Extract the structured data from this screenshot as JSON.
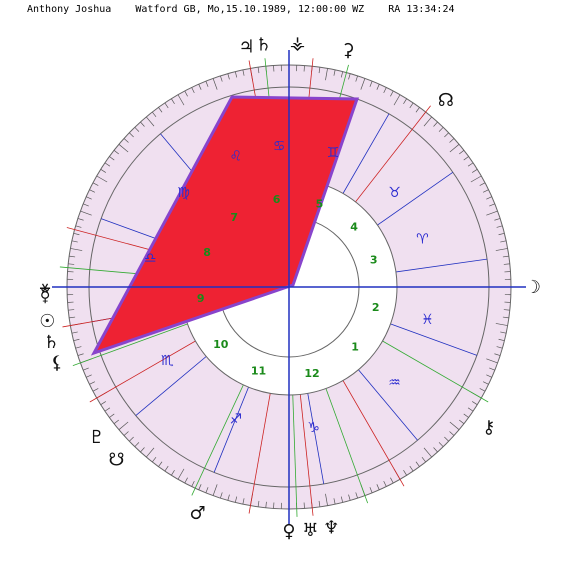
{
  "header": {
    "name": "Anthony Joshua",
    "details": "Watford GB, Mo,15.10.1989, 12:00:00 WZ",
    "ra": "RA 13:34:24"
  },
  "colors": {
    "ring_fill": "#f0e0f0",
    "ring_stroke": "#666666",
    "highlight_fill": "#ee2233",
    "highlight_stroke": "#8844cc",
    "zodiac_text": "#2b2bd0",
    "house_text": "#1a8a1a",
    "axis_line": "#2030c0",
    "planet_line_red": "#cc2222",
    "planet_line_green": "#33aa33"
  },
  "outer_planets": [
    {
      "name": "jupiter-icon",
      "glyph": "♃",
      "label_deg": 100
    },
    {
      "name": "saturn-icon-top",
      "glyph": "♄",
      "label_deg": 96
    },
    {
      "name": "vesta-icon",
      "glyph": "⚶",
      "label_deg": 88
    },
    {
      "name": "ceres-icon",
      "glyph": "⚳",
      "label_deg": 76
    },
    {
      "name": "moon-node-icon",
      "glyph": "☊",
      "label_deg": 50
    },
    {
      "name": "moon-icon",
      "glyph": "☽",
      "label_deg": 0
    },
    {
      "name": "chiron-icon",
      "glyph": "⚷",
      "label_deg": -35
    },
    {
      "name": "uranus-icon",
      "glyph": "♅",
      "label_deg": -85
    },
    {
      "name": "neptune-icon",
      "glyph": "♆",
      "label_deg": -80
    },
    {
      "name": "venus-icon",
      "glyph": "♀",
      "label_deg": -90
    },
    {
      "name": "mars-icon",
      "glyph": "♂",
      "label_deg": -112
    },
    {
      "name": "sun-node-icon",
      "glyph": "☋",
      "label_deg": -135
    },
    {
      "name": "pluto-icon",
      "glyph": "♇",
      "label_deg": -142
    },
    {
      "name": "lilith-icon",
      "glyph": "⚸",
      "label_deg": -162
    },
    {
      "name": "sun-icon",
      "glyph": "☉",
      "label_deg": -172
    },
    {
      "name": "saturn-icon",
      "glyph": "♄",
      "label_deg": -167
    },
    {
      "name": "mercury-icon",
      "glyph": "☿",
      "label_deg": -178
    },
    {
      "name": "mc-node-icon",
      "glyph": "⚹",
      "label_deg": 180
    }
  ],
  "zodiac_signs": [
    {
      "name": "sign-gemini",
      "glyph": "♊",
      "deg": 72
    },
    {
      "name": "sign-taurus",
      "glyph": "♉",
      "deg": 42
    },
    {
      "name": "sign-aries",
      "glyph": "♈",
      "deg": 20
    },
    {
      "name": "sign-pisces",
      "glyph": "♓",
      "deg": -13
    },
    {
      "name": "sign-aquarius",
      "glyph": "♒",
      "deg": -42
    },
    {
      "name": "sign-capricorn",
      "glyph": "♑",
      "deg": -80
    },
    {
      "name": "sign-sagittarius",
      "glyph": "♐",
      "deg": -112
    },
    {
      "name": "sign-scorpio",
      "glyph": "♏",
      "deg": -149
    },
    {
      "name": "sign-libra",
      "glyph": "♎",
      "deg": -192
    },
    {
      "name": "sign-virgo",
      "glyph": "♍",
      "deg": -222
    },
    {
      "name": "sign-leo",
      "glyph": "♌",
      "deg": -248
    },
    {
      "name": "sign-cancer",
      "glyph": "♋",
      "deg": -266
    }
  ],
  "house_numbers": [
    {
      "label": "4",
      "deg": 43
    },
    {
      "label": "3",
      "deg": 18
    },
    {
      "label": "2",
      "deg": -13
    },
    {
      "label": "1",
      "deg": -42
    },
    {
      "label": "12",
      "deg": -75
    },
    {
      "label": "11",
      "deg": -110
    },
    {
      "label": "10",
      "deg": -140
    },
    {
      "label": "9",
      "deg": -173
    },
    {
      "label": "8",
      "deg": -203
    },
    {
      "label": "7",
      "deg": -232
    },
    {
      "label": "6",
      "deg": -262
    },
    {
      "label": "5",
      "deg": -290
    }
  ]
}
